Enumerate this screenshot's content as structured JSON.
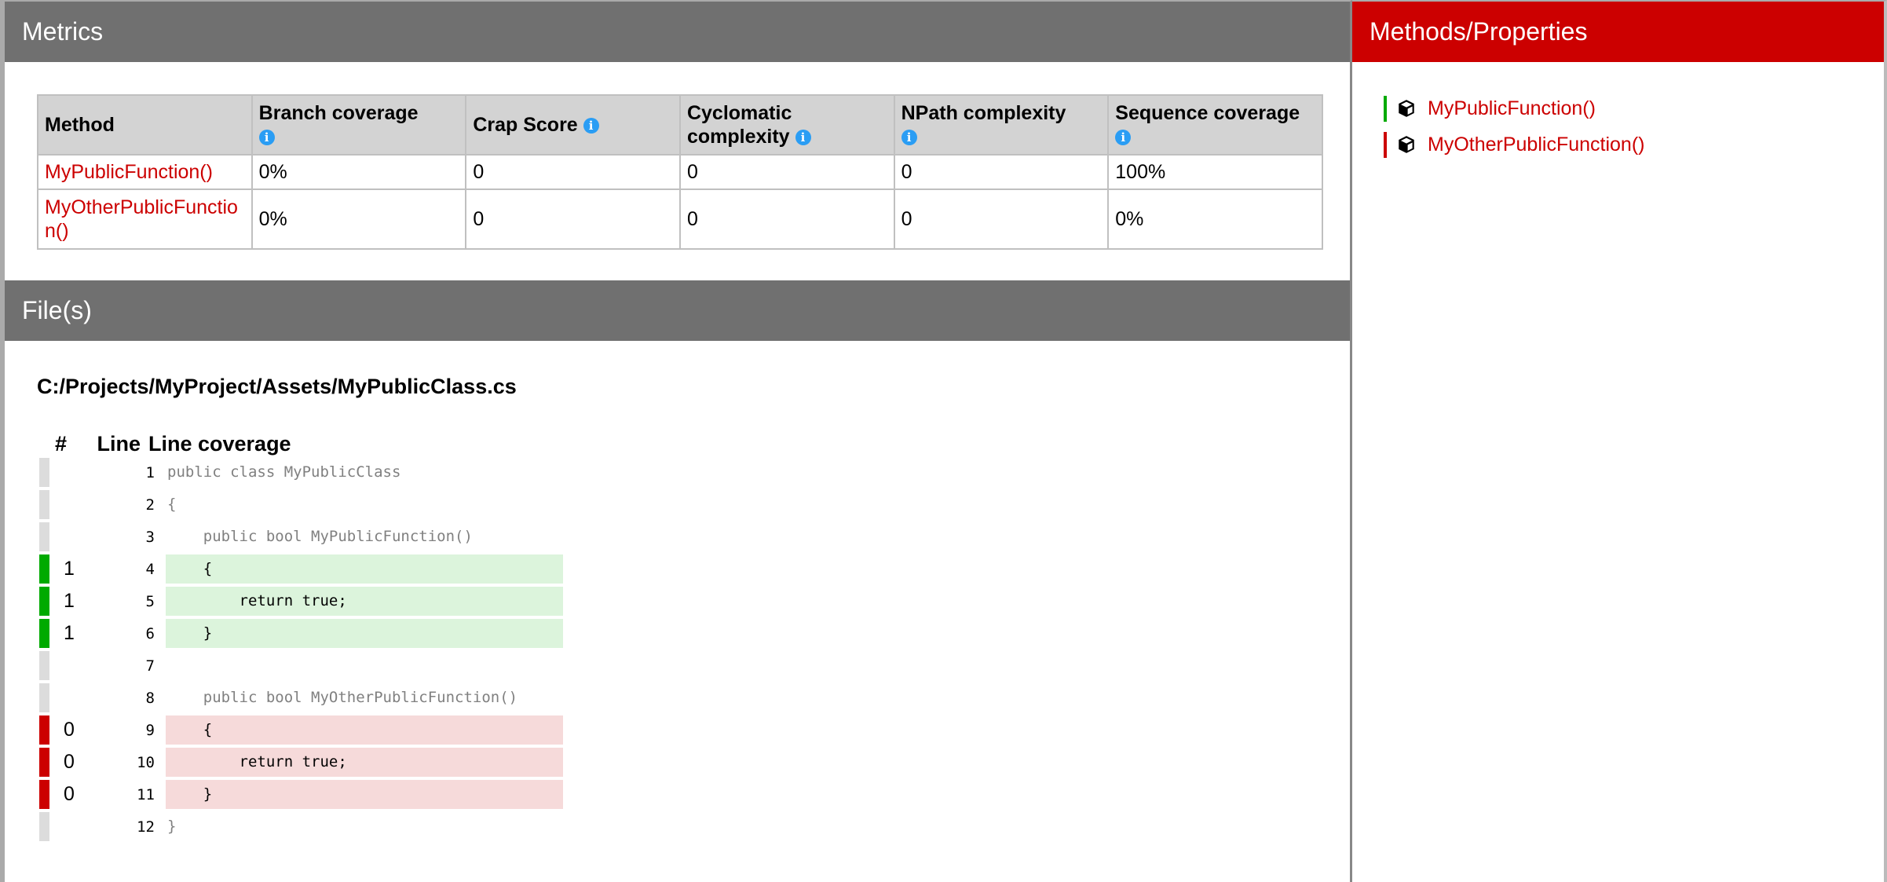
{
  "metrics": {
    "title": "Metrics",
    "columns": [
      "Method",
      "Branch coverage",
      "Crap Score",
      "Cyclomatic complexity",
      "NPath complexity",
      "Sequence coverage"
    ],
    "info_icon": "info-icon",
    "rows": [
      {
        "method": "MyPublicFunction()",
        "branch": "0%",
        "crap": "0",
        "cyclomatic": "0",
        "npath": "0",
        "sequence": "100%"
      },
      {
        "method": "MyOtherPublicFunction()",
        "branch": "0%",
        "crap": "0",
        "cyclomatic": "0",
        "npath": "0",
        "sequence": "0%"
      }
    ]
  },
  "files": {
    "title": "File(s)",
    "path": "C:/Projects/MyProject/Assets/MyPublicClass.cs",
    "headers": {
      "hits": "#",
      "line": "Line",
      "coverage": "Line coverage"
    },
    "lines": [
      {
        "hits": "",
        "line": "1",
        "code": "public class MyPublicClass",
        "status": "none"
      },
      {
        "hits": "",
        "line": "2",
        "code": "{",
        "status": "none"
      },
      {
        "hits": "",
        "line": "3",
        "code": "    public bool MyPublicFunction()",
        "status": "none"
      },
      {
        "hits": "1",
        "line": "4",
        "code": "    {",
        "status": "cov"
      },
      {
        "hits": "1",
        "line": "5",
        "code": "        return true;",
        "status": "cov"
      },
      {
        "hits": "1",
        "line": "6",
        "code": "    }",
        "status": "cov"
      },
      {
        "hits": "",
        "line": "7",
        "code": "",
        "status": "none"
      },
      {
        "hits": "",
        "line": "8",
        "code": "    public bool MyOtherPublicFunction()",
        "status": "none"
      },
      {
        "hits": "0",
        "line": "9",
        "code": "    {",
        "status": "unc"
      },
      {
        "hits": "0",
        "line": "10",
        "code": "        return true;",
        "status": "unc"
      },
      {
        "hits": "0",
        "line": "11",
        "code": "    }",
        "status": "unc"
      },
      {
        "hits": "",
        "line": "12",
        "code": "}",
        "status": "none"
      }
    ]
  },
  "sidebar": {
    "title": "Methods/Properties",
    "items": [
      {
        "label": "MyPublicFunction()",
        "status": "covered"
      },
      {
        "label": "MyOtherPublicFunction()",
        "status": "uncovered"
      }
    ]
  },
  "colors": {
    "header": "#707070",
    "accent": "#cc0000",
    "covered": "#00aa00",
    "uncovered": "#cc0000"
  }
}
